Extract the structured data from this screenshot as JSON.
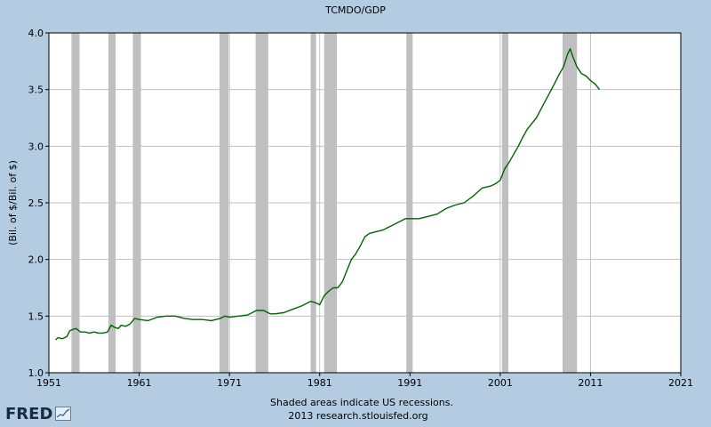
{
  "chart_data": {
    "type": "line",
    "title": "TCMDO/GDP",
    "ylabel": "(Bil. of $/Bil. of $)",
    "xlabel": "",
    "xlim": [
      1951,
      2021
    ],
    "ylim": [
      1.0,
      4.0
    ],
    "x_ticks": [
      "1951",
      "1961",
      "1971",
      "1981",
      "1991",
      "2001",
      "2011",
      "2021"
    ],
    "y_ticks": [
      "1.0",
      "1.5",
      "2.0",
      "2.5",
      "3.0",
      "3.5",
      "4.0"
    ],
    "grid": true,
    "line_color": "#006400",
    "recession_color": "#bfbfbf",
    "plot_background": "#ffffff",
    "page_background": "#b4cce2",
    "recessions": [
      [
        1953.5,
        1954.4
      ],
      [
        1957.6,
        1958.4
      ],
      [
        1960.3,
        1961.2
      ],
      [
        1969.9,
        1970.9
      ],
      [
        1973.9,
        1975.3
      ],
      [
        1980.0,
        1980.6
      ],
      [
        1981.5,
        1982.9
      ],
      [
        1990.6,
        1991.3
      ],
      [
        2001.2,
        2001.9
      ],
      [
        2007.9,
        2009.5
      ]
    ],
    "series": [
      {
        "x": [
          1951.75,
          1952.0,
          1952.5,
          1953.0,
          1953.3,
          1953.6,
          1954.0,
          1954.5,
          1955.0,
          1955.5,
          1956.0,
          1956.5,
          1957.0,
          1957.5,
          1957.9,
          1958.3,
          1958.7,
          1959.0,
          1959.5,
          1960.0,
          1960.5,
          1961.0,
          1962.0,
          1963.0,
          1964.0,
          1965.0,
          1966.0,
          1967.0,
          1968.0,
          1969.0,
          1970.0,
          1970.5,
          1971.0,
          1972.0,
          1973.0,
          1974.0,
          1974.8,
          1975.5,
          1976.0,
          1977.0,
          1978.0,
          1979.0,
          1980.0,
          1980.5,
          1981.0,
          1981.5,
          1982.0,
          1982.5,
          1983.0,
          1983.5,
          1984.0,
          1984.5,
          1985.0,
          1985.5,
          1986.0,
          1986.5,
          1987.0,
          1988.0,
          1989.0,
          1990.0,
          1990.5,
          1991.0,
          1992.0,
          1993.0,
          1994.0,
          1995.0,
          1996.0,
          1997.0,
          1998.0,
          1999.0,
          2000.0,
          2000.5,
          2001.0,
          2001.5,
          2002.0,
          2002.5,
          2003.0,
          2003.5,
          2004.0,
          2005.0,
          2006.0,
          2007.0,
          2007.5,
          2008.0,
          2008.5,
          2008.75,
          2009.0,
          2009.5,
          2010.0,
          2010.5,
          2011.0,
          2011.5,
          2012.0
        ],
        "y": [
          1.29,
          1.31,
          1.3,
          1.32,
          1.37,
          1.38,
          1.39,
          1.36,
          1.36,
          1.35,
          1.36,
          1.35,
          1.35,
          1.36,
          1.42,
          1.4,
          1.39,
          1.42,
          1.41,
          1.43,
          1.48,
          1.47,
          1.46,
          1.49,
          1.5,
          1.5,
          1.48,
          1.47,
          1.47,
          1.46,
          1.48,
          1.5,
          1.49,
          1.5,
          1.51,
          1.55,
          1.55,
          1.52,
          1.52,
          1.53,
          1.56,
          1.59,
          1.63,
          1.62,
          1.6,
          1.68,
          1.72,
          1.75,
          1.75,
          1.8,
          1.9,
          2.0,
          2.05,
          2.12,
          2.2,
          2.23,
          2.24,
          2.26,
          2.3,
          2.34,
          2.36,
          2.36,
          2.36,
          2.38,
          2.4,
          2.45,
          2.48,
          2.5,
          2.56,
          2.63,
          2.65,
          2.67,
          2.7,
          2.8,
          2.86,
          2.93,
          3.0,
          3.08,
          3.15,
          3.25,
          3.4,
          3.55,
          3.63,
          3.7,
          3.82,
          3.86,
          3.8,
          3.7,
          3.64,
          3.62,
          3.58,
          3.55,
          3.5
        ]
      }
    ]
  },
  "footer": {
    "note_line1": "Shaded areas indicate US recessions.",
    "note_line2": "2013 research.stlouisfed.org",
    "logo_text": "FRED"
  }
}
